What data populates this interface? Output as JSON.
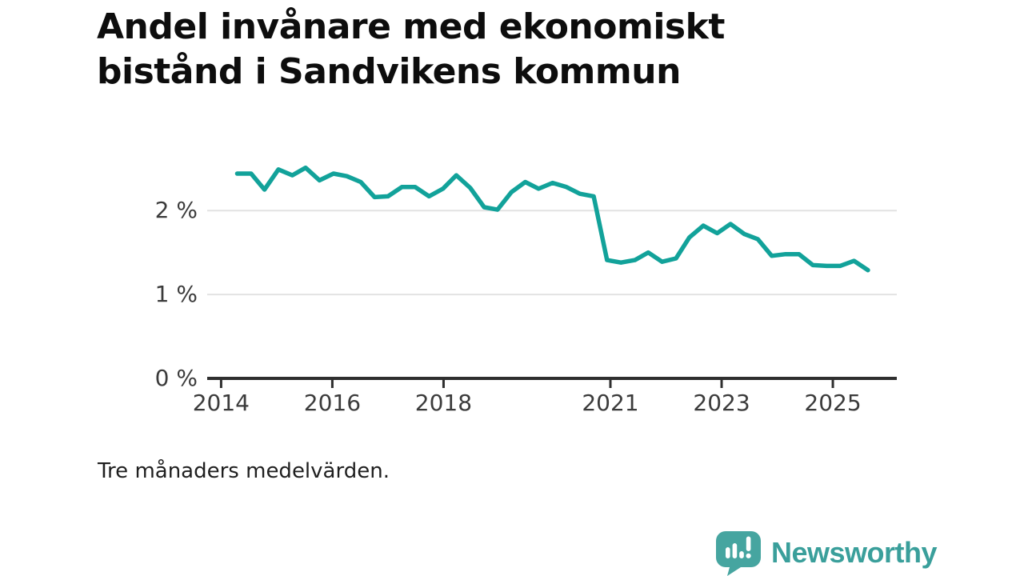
{
  "page": {
    "title_line1": "Andel invånare med ekonomiskt",
    "title_line2": "bistånd i Sandvikens kommun",
    "footnote": "Tre månaders medelvärden.",
    "brand_name": "Newsworthy"
  },
  "icons": {
    "brand_logo": "speech-bubble-bar-chart-icon"
  },
  "colors": {
    "line": "#12a29a",
    "grid": "#e2e2e2",
    "axis": "#2f2f2f",
    "tick_text": "#3b3b3b",
    "title_text": "#0d0d0d",
    "brand_bubble": "#46a5a0",
    "brand_text": "#3a9f9b"
  },
  "chart_data": {
    "type": "line",
    "title": "Andel invånare med ekonomiskt bistånd i Sandvikens kommun",
    "note": "Tre månaders medelvärden.",
    "xlabel": "",
    "ylabel": "",
    "xlim": [
      2013.75,
      2026.15
    ],
    "ylim": [
      0,
      2.65
    ],
    "grid": "horizontal-only",
    "legend": "none",
    "x_ticks": [
      2014,
      2016,
      2018,
      2021,
      2023,
      2025
    ],
    "y_ticks": [
      {
        "value": 0,
        "label": "0 %"
      },
      {
        "value": 1,
        "label": "1 %"
      },
      {
        "value": 2,
        "label": "2 %"
      }
    ],
    "series": [
      {
        "name": "Andel invånare med ekonomiskt bistånd",
        "color": "#12a29a",
        "x": [
          2014.29,
          2014.54,
          2014.78,
          2015.03,
          2015.28,
          2015.52,
          2015.77,
          2016.02,
          2016.26,
          2016.51,
          2016.76,
          2017.0,
          2017.25,
          2017.49,
          2017.74,
          2017.99,
          2018.23,
          2018.48,
          2018.73,
          2018.97,
          2019.22,
          2019.47,
          2019.71,
          2019.96,
          2020.21,
          2020.45,
          2020.7,
          2020.94,
          2021.19,
          2021.44,
          2021.68,
          2021.93,
          2022.18,
          2022.42,
          2022.67,
          2022.92,
          2023.16,
          2023.41,
          2023.65,
          2023.9,
          2024.15,
          2024.39,
          2024.64,
          2024.89,
          2025.13,
          2025.38,
          2025.63
        ],
        "y": [
          2.44,
          2.44,
          2.25,
          2.49,
          2.42,
          2.51,
          2.36,
          2.44,
          2.41,
          2.34,
          2.16,
          2.17,
          2.28,
          2.28,
          2.17,
          2.26,
          2.42,
          2.27,
          2.04,
          2.01,
          2.22,
          2.34,
          2.26,
          2.33,
          2.28,
          2.2,
          2.17,
          1.41,
          1.38,
          1.41,
          1.5,
          1.39,
          1.43,
          1.68,
          1.82,
          1.73,
          1.84,
          1.72,
          1.66,
          1.46,
          1.48,
          1.48,
          1.35,
          1.34,
          1.34,
          1.4,
          1.29
        ]
      }
    ]
  }
}
